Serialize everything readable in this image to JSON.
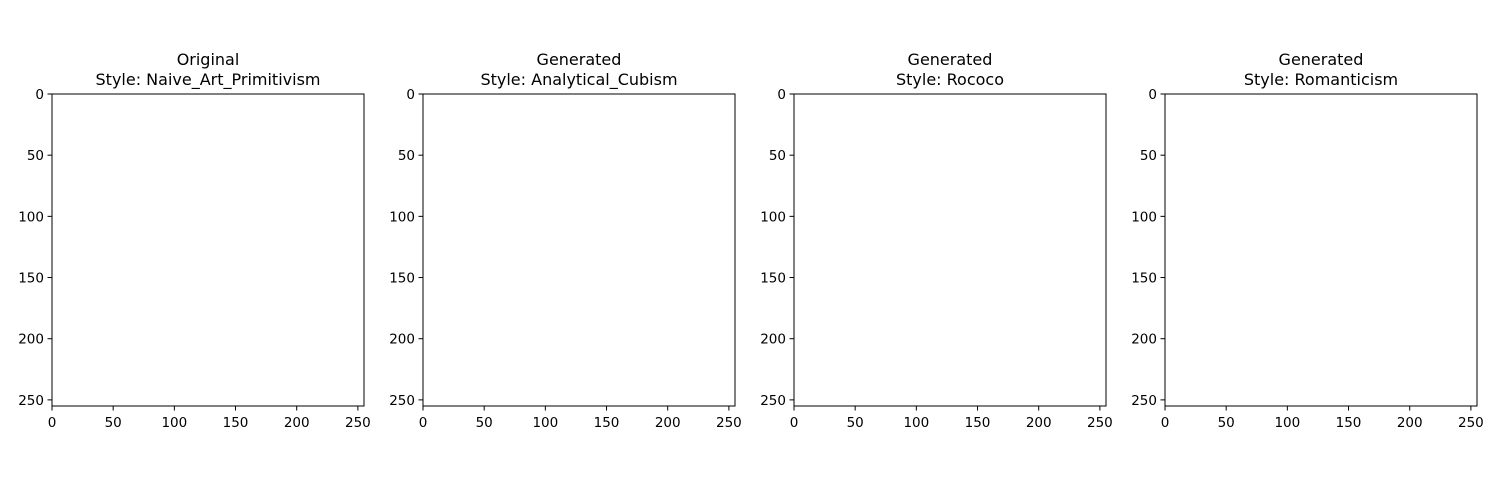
{
  "chart_data": [
    {
      "type": "image",
      "title_lines": [
        "Original",
        "Style: Naive_Art_Primitivism"
      ],
      "xlim": [
        0,
        255
      ],
      "ylim": [
        255,
        0
      ],
      "xticks": [
        0,
        50,
        100,
        150,
        200,
        250
      ],
      "yticks": [
        0,
        50,
        100,
        150,
        200,
        250
      ],
      "grid": false
    },
    {
      "type": "image",
      "title_lines": [
        "Generated",
        "Style: Analytical_Cubism"
      ],
      "xlim": [
        0,
        255
      ],
      "ylim": [
        255,
        0
      ],
      "xticks": [
        0,
        50,
        100,
        150,
        200,
        250
      ],
      "yticks": [
        0,
        50,
        100,
        150,
        200,
        250
      ],
      "grid": false
    },
    {
      "type": "image",
      "title_lines": [
        "Generated",
        "Style: Rococo"
      ],
      "xlim": [
        0,
        255
      ],
      "ylim": [
        255,
        0
      ],
      "xticks": [
        0,
        50,
        100,
        150,
        200,
        250
      ],
      "yticks": [
        0,
        50,
        100,
        150,
        200,
        250
      ],
      "grid": false
    },
    {
      "type": "image",
      "title_lines": [
        "Generated",
        "Style: Romanticism"
      ],
      "xlim": [
        0,
        255
      ],
      "ylim": [
        255,
        0
      ],
      "xticks": [
        0,
        50,
        100,
        150,
        200,
        250
      ],
      "yticks": [
        0,
        50,
        100,
        150,
        200,
        250
      ],
      "grid": false
    }
  ]
}
